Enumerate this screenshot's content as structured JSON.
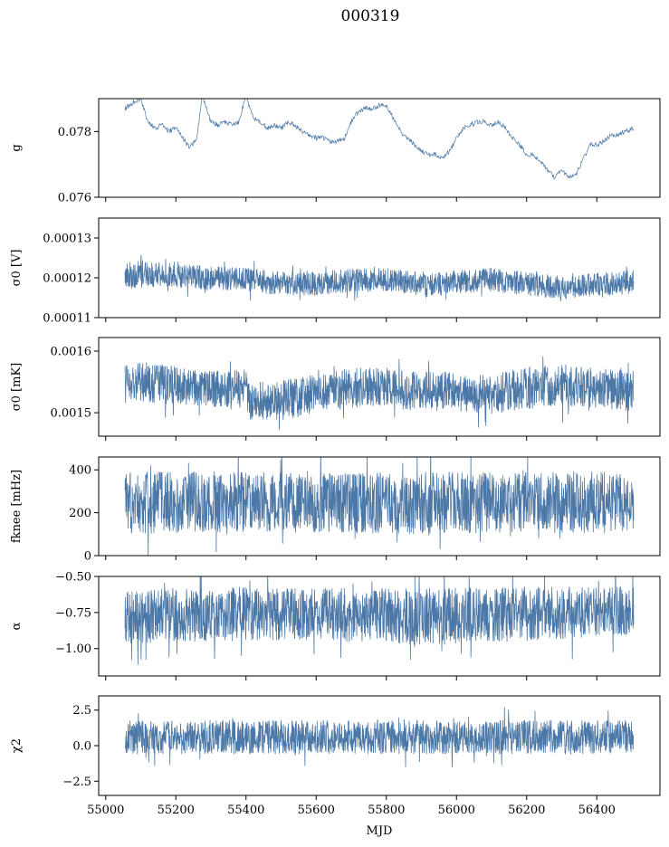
{
  "figure": {
    "title": "000319",
    "xlabel": "MJD"
  },
  "style": {
    "series_color": "#4c78a8"
  },
  "chart_data": [
    {
      "type": "line",
      "ylabel": "g",
      "xlim": [
        54980,
        56580
      ],
      "ylim": [
        0.076,
        0.079
      ],
      "yticks": [
        0.076,
        0.078
      ],
      "ytick_labels": [
        "0.076",
        "0.078"
      ],
      "xticks": [
        55000,
        55200,
        55400,
        55600,
        55800,
        56000,
        56200,
        56400
      ],
      "xtick_labels": [],
      "series": [
        {
          "x": [
            55055,
            55080,
            55100,
            55120,
            55140,
            55160,
            55180,
            55200,
            55220,
            55240,
            55260,
            55275,
            55300,
            55320,
            55340,
            55360,
            55380,
            55400,
            55420,
            55440,
            55460,
            55480,
            55500,
            55520,
            55540,
            55560,
            55580,
            55600,
            55620,
            55640,
            55660,
            55680,
            55700,
            55720,
            55740,
            55760,
            55780,
            55800,
            55820,
            55840,
            55860,
            55880,
            55900,
            55920,
            55940,
            55960,
            55980,
            56000,
            56020,
            56040,
            56060,
            56080,
            56100,
            56120,
            56140,
            56160,
            56180,
            56200,
            56220,
            56240,
            56260,
            56280,
            56300,
            56320,
            56340,
            56360,
            56380,
            56400,
            56420,
            56440,
            56460,
            56480,
            56505
          ],
          "y": [
            0.0787,
            0.0789,
            0.079,
            0.0783,
            0.0781,
            0.0782,
            0.078,
            0.0781,
            0.0778,
            0.0775,
            0.0778,
            0.0791,
            0.0783,
            0.0782,
            0.0783,
            0.0782,
            0.0783,
            0.0791,
            0.0784,
            0.0783,
            0.0781,
            0.0782,
            0.0781,
            0.0783,
            0.0782,
            0.078,
            0.0779,
            0.0778,
            0.0778,
            0.0777,
            0.0777,
            0.0778,
            0.0783,
            0.0786,
            0.0787,
            0.0787,
            0.0788,
            0.0788,
            0.0784,
            0.078,
            0.0778,
            0.0776,
            0.0774,
            0.0773,
            0.0773,
            0.0772,
            0.0774,
            0.0778,
            0.0781,
            0.0782,
            0.0783,
            0.0783,
            0.0782,
            0.0783,
            0.0781,
            0.0778,
            0.0776,
            0.0773,
            0.0773,
            0.0771,
            0.0768,
            0.0766,
            0.0768,
            0.0766,
            0.0767,
            0.0771,
            0.0776,
            0.0776,
            0.0777,
            0.0779,
            0.0779,
            0.078,
            0.0781
          ]
        }
      ]
    },
    {
      "type": "line",
      "ylabel": "σ0 [V]",
      "xlim": [
        54980,
        56580
      ],
      "ylim": [
        0.00011,
        0.000135
      ],
      "yticks": [
        0.00011,
        0.00012,
        0.00013
      ],
      "ytick_labels": [
        "0.00011",
        "0.00012",
        "0.00013"
      ],
      "xticks": [
        55000,
        55200,
        55400,
        55600,
        55800,
        56000,
        56200,
        56400
      ],
      "xtick_labels": [],
      "series": [
        {
          "x": [
            55055,
            55100,
            55200,
            55300,
            55400,
            55500,
            55600,
            55700,
            55800,
            55900,
            55910,
            56000,
            56100,
            56200,
            56300,
            56400,
            56505
          ],
          "center": [
            0.0001205,
            0.000121,
            0.0001205,
            0.00012,
            0.0001195,
            0.0001185,
            0.0001185,
            0.0001195,
            0.0001195,
            0.0001185,
            0.000118,
            0.000119,
            0.0001195,
            0.0001185,
            0.0001175,
            0.0001185,
            0.000119
          ],
          "spread": [
            3.5e-06,
            3.5e-06,
            3e-06,
            3e-06,
            3e-06,
            3e-06,
            3e-06,
            3e-06,
            3e-06,
            3e-06,
            3e-06,
            3e-06,
            3e-06,
            3e-06,
            3e-06,
            3e-06,
            3e-06
          ]
        }
      ]
    },
    {
      "type": "line",
      "ylabel": "σ0 [mK]",
      "xlim": [
        54980,
        56580
      ],
      "ylim": [
        0.001462,
        0.001622
      ],
      "yticks": [
        0.0015,
        0.0016
      ],
      "ytick_labels": [
        "0.0015",
        "0.0016"
      ],
      "xticks": [
        55000,
        55200,
        55400,
        55600,
        55800,
        56000,
        56200,
        56400
      ],
      "xtick_labels": [],
      "series": [
        {
          "x": [
            55055,
            55100,
            55200,
            55300,
            55400,
            55410,
            55500,
            55600,
            55700,
            55800,
            55900,
            56000,
            56100,
            56200,
            56300,
            56400,
            56505
          ],
          "center": [
            0.001545,
            0.00155,
            0.001545,
            0.00154,
            0.00154,
            0.00152,
            0.00152,
            0.00153,
            0.00154,
            0.00154,
            0.001535,
            0.001535,
            0.00153,
            0.00154,
            0.001545,
            0.00154,
            0.001535
          ],
          "spread": [
            3.3e-05,
            3.3e-05,
            3.2e-05,
            3.2e-05,
            3.2e-05,
            3.3e-05,
            3.3e-05,
            3.2e-05,
            3.3e-05,
            3.3e-05,
            3.2e-05,
            3.3e-05,
            3.3e-05,
            3.4e-05,
            3.4e-05,
            3.3e-05,
            3.3e-05
          ]
        }
      ]
    },
    {
      "type": "line",
      "ylabel": "fknee [mHz]",
      "xlim": [
        54980,
        56580
      ],
      "ylim": [
        0,
        460
      ],
      "yticks": [
        0,
        200,
        400
      ],
      "ytick_labels": [
        "0",
        "200",
        "400"
      ],
      "xticks": [
        55000,
        55200,
        55400,
        55600,
        55800,
        56000,
        56200,
        56400
      ],
      "xtick_labels": [],
      "series": [
        {
          "x": [
            55055,
            55300,
            55600,
            55900,
            56200,
            56505
          ],
          "center": [
            245,
            250,
            245,
            245,
            250,
            248
          ],
          "spread": [
            145,
            145,
            140,
            145,
            145,
            145
          ]
        }
      ]
    },
    {
      "type": "line",
      "ylabel": "α",
      "xlim": [
        54980,
        56580
      ],
      "ylim": [
        -1.19,
        -0.5
      ],
      "yticks": [
        -1.0,
        -0.75,
        -0.5
      ],
      "ytick_labels": [
        "−1.00",
        "−0.75",
        "−0.50"
      ],
      "xticks": [
        55000,
        55200,
        55400,
        55600,
        55800,
        56000,
        56200,
        56400
      ],
      "xtick_labels": [],
      "series": [
        {
          "x": [
            55055,
            55300,
            55600,
            55900,
            56200,
            56505
          ],
          "center": [
            -0.78,
            -0.76,
            -0.76,
            -0.78,
            -0.76,
            -0.74
          ],
          "spread": [
            0.19,
            0.19,
            0.18,
            0.2,
            0.19,
            0.17
          ]
        }
      ]
    },
    {
      "type": "line",
      "ylabel": "χ2",
      "xlim": [
        54980,
        56580
      ],
      "ylim": [
        -3.5,
        3.5
      ],
      "yticks": [
        -2.5,
        0.0,
        2.5
      ],
      "ytick_labels": [
        "−2.5",
        "0.0",
        "2.5"
      ],
      "xticks": [
        55000,
        55200,
        55400,
        55600,
        55800,
        56000,
        56200,
        56400
      ],
      "xtick_labels": [
        "55000",
        "55200",
        "55400",
        "55600",
        "55800",
        "56000",
        "56200",
        "56400"
      ],
      "series": [
        {
          "x": [
            55055,
            55300,
            55600,
            55900,
            56200,
            56505
          ],
          "center": [
            0.6,
            0.6,
            0.6,
            0.6,
            0.6,
            0.6
          ],
          "spread": [
            1.2,
            1.2,
            1.2,
            1.2,
            1.2,
            1.2
          ]
        }
      ]
    }
  ]
}
